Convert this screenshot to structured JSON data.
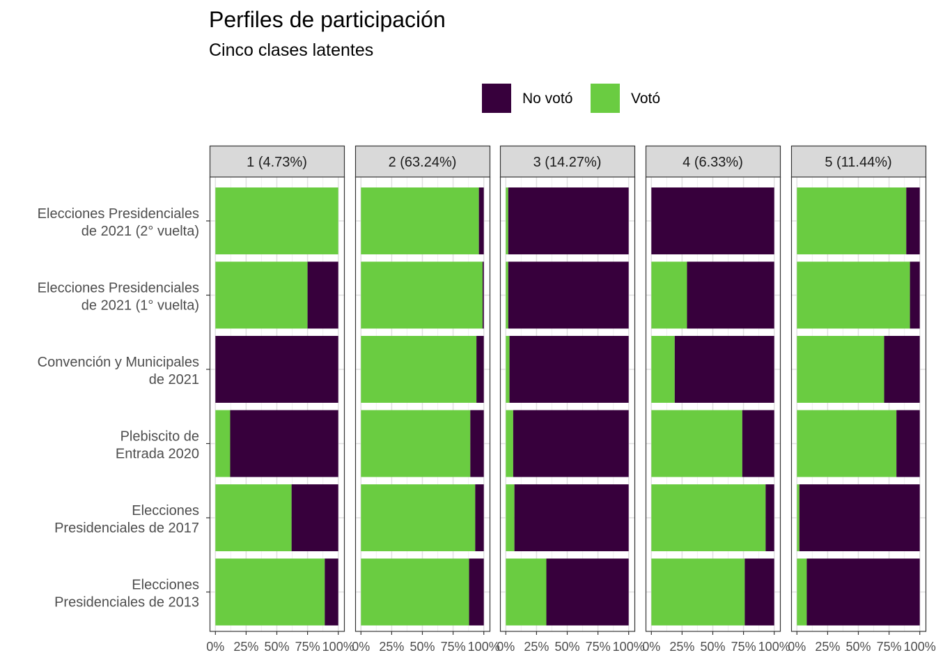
{
  "chart_data": {
    "type": "bar",
    "orientation": "horizontal",
    "stacked": true,
    "title": "Perfiles de participación",
    "subtitle": "Cinco clases latentes",
    "xlabel": "",
    "ylabel": "",
    "xlim": [
      0,
      1
    ],
    "x_ticks": [
      "0%",
      "25%",
      "50%",
      "75%",
      "100%"
    ],
    "legend_position": "top",
    "colors": {
      "No votó": "#37003c",
      "Votó": "#6acc41"
    },
    "legend": [
      "No votó",
      "Votó"
    ],
    "categories": [
      "Elecciones Presidenciales\nde 2021 (2° vuelta)",
      "Elecciones Presidenciales\nde 2021 (1° vuelta)",
      "Convención y Municipales\nde 2021",
      "Plebiscito de\nEntrada 2020",
      "Elecciones\nPresidenciales de 2017",
      "Elecciones\nPresidenciales de 2013"
    ],
    "facets": [
      {
        "label": "1 (4.73%)",
        "voto": [
          1.0,
          0.75,
          0.0,
          0.12,
          0.62,
          0.89
        ]
      },
      {
        "label": "2 (63.24%)",
        "voto": [
          0.96,
          0.99,
          0.94,
          0.89,
          0.93,
          0.88
        ]
      },
      {
        "label": "3 (14.27%)",
        "voto": [
          0.02,
          0.02,
          0.03,
          0.06,
          0.07,
          0.33
        ]
      },
      {
        "label": "4 (6.33%)",
        "voto": [
          0.0,
          0.29,
          0.19,
          0.74,
          0.93,
          0.76
        ]
      },
      {
        "label": "5 (11.44%)",
        "voto": [
          0.89,
          0.92,
          0.71,
          0.81,
          0.02,
          0.08
        ]
      }
    ]
  }
}
